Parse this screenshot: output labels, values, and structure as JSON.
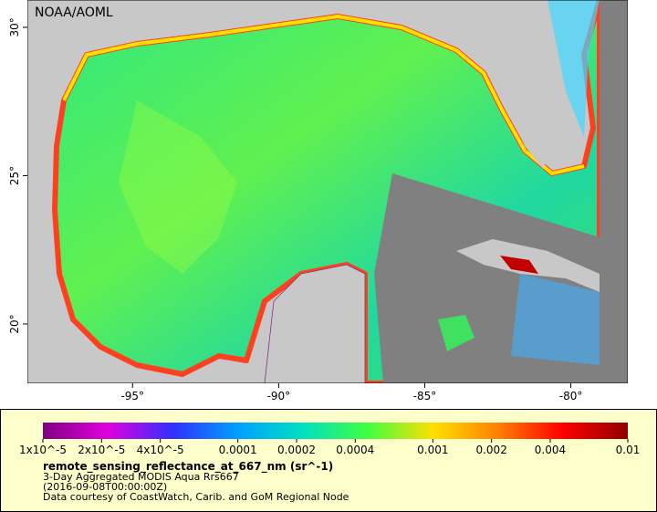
{
  "header": {
    "credit": "NOAA/AOML"
  },
  "map": {
    "xlim": [
      -98.6,
      -78.05
    ],
    "ylim": [
      18,
      30.92
    ],
    "xticks": [
      {
        "value": -95,
        "label": "-95°"
      },
      {
        "value": -90,
        "label": "-90°"
      },
      {
        "value": -85,
        "label": "-85°"
      },
      {
        "value": -80,
        "label": "-80°"
      }
    ],
    "yticks": [
      {
        "value": 30,
        "label": "30°"
      },
      {
        "value": 25,
        "label": "25°"
      },
      {
        "value": 20,
        "label": "20°"
      }
    ]
  },
  "legend": {
    "title": "remote_sensing_reflectance_at_667_nm (sr^-1)",
    "lines": [
      "3-Day Aggregated MODIS Aqua Rrs667",
      "(2016-09-08T00:00:00Z)",
      "Data courtesy of CoastWatch, Carib. and GoM Regional Node"
    ],
    "scale": "log",
    "range": [
      1e-05,
      0.01
    ],
    "ticks": [
      {
        "value": 1e-05,
        "label": "1x10^-5"
      },
      {
        "value": 2e-05,
        "label": "2x10^-5"
      },
      {
        "value": 4e-05,
        "label": "4x10^-5"
      },
      0.0001,
      0.0002,
      0.0004,
      0.001,
      0.002,
      0.004,
      0.01
    ],
    "colors": [
      "#800080",
      "#e000e0",
      "#3030ff",
      "#00a0ff",
      "#00e0c0",
      "#40ff40",
      "#ffe000",
      "#ff8000",
      "#ff0000",
      "#900000"
    ]
  }
}
